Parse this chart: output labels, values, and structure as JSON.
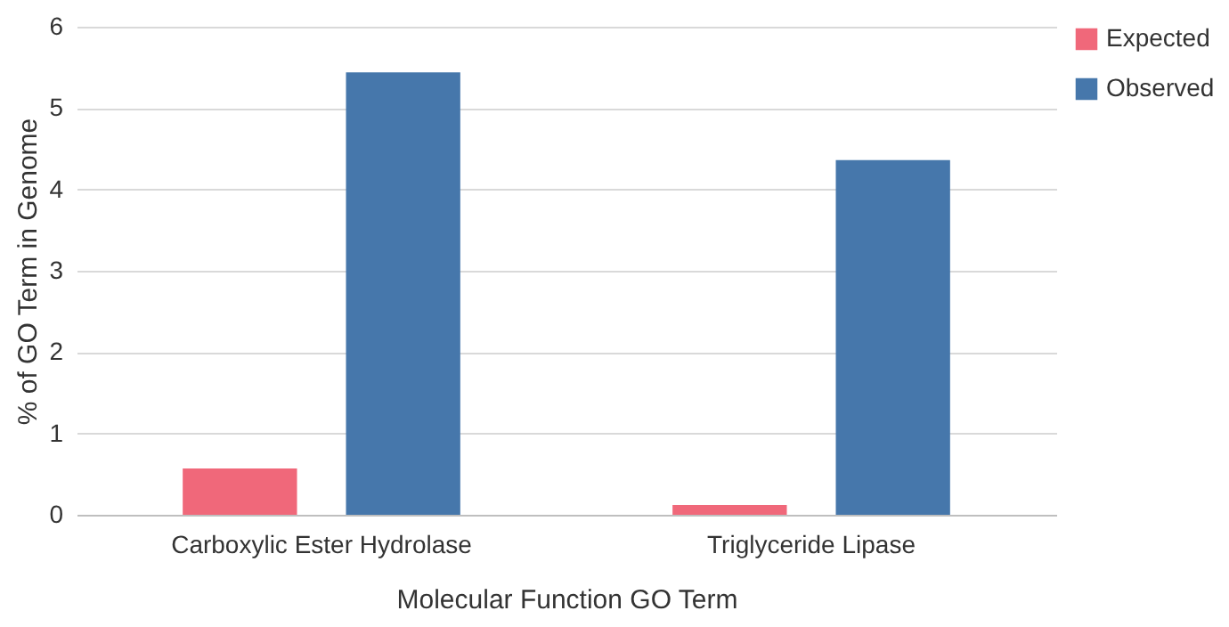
{
  "chart_data": {
    "type": "bar",
    "xlabel": "Molecular Function GO Term",
    "ylabel": "% of GO Term in Genome",
    "categories": [
      "Carboxylic Ester Hydrolase",
      "Triglyceride Lipase"
    ],
    "series": [
      {
        "name": "Expected",
        "color": "#f0687a",
        "values": [
          0.57,
          0.12
        ]
      },
      {
        "name": "Observed",
        "color": "#4677ab",
        "values": [
          5.44,
          4.36
        ]
      }
    ],
    "ylim": [
      0,
      6
    ],
    "yticks": [
      0,
      1,
      2,
      3,
      4,
      5,
      6
    ],
    "grid": "y",
    "legend": "right"
  }
}
